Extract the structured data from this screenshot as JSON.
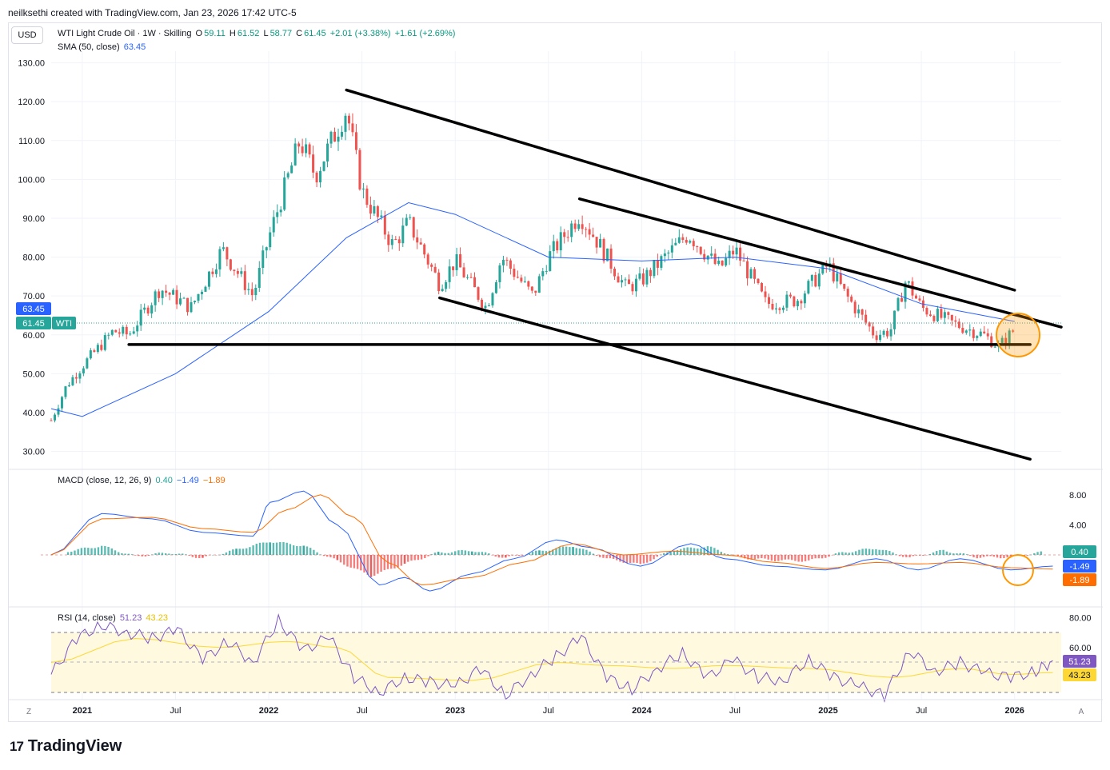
{
  "attribution": "neilksethi created with TradingView.com, Jan 23, 2026 17:42 UTC-5",
  "currency": "USD",
  "header": {
    "symbol": "WTI Light Crude Oil · 1W · Skilling",
    "o_label": "O",
    "o": "59.11",
    "h_label": "H",
    "h": "61.52",
    "l_label": "L",
    "l": "58.77",
    "c_label": "C",
    "c": "61.45",
    "change": "+2.01 (+3.38%)",
    "change2": "+1.61 (+2.69%)",
    "sma_label": "SMA (50, close)",
    "sma_value": "63.45"
  },
  "macd_header": {
    "label": "MACD (close, 12, 26, 9)",
    "hist": "0.40",
    "macd": "−1.49",
    "signal": "−1.89"
  },
  "rsi_header": {
    "label": "RSI (14, close)",
    "rsi": "51.23",
    "rsi_ma": "43.23"
  },
  "price_tags": {
    "sma": "63.45",
    "last": "61.45",
    "ticker": "WTI"
  },
  "macd_tags": {
    "hist": "0.40",
    "macd": "-1.49",
    "signal": "-1.89"
  },
  "rsi_tags": {
    "rsi": "51.23",
    "ma": "43.23"
  },
  "scale_left": "Z",
  "scale_right": "A",
  "footer": {
    "brand": "TradingView",
    "logo": "17"
  },
  "colors": {
    "up": "#26a69a",
    "down": "#ef5350",
    "sma": "#2962ff",
    "macd": "#2962ff",
    "signal": "#ff6d00",
    "rsi": "#7e57c2",
    "rsi_ma": "#fdd835",
    "highlight": "#ff9800"
  },
  "chart_data": [
    {
      "type": "candlestick",
      "title": "WTI Light Crude Oil · 1W · Skilling",
      "y_ticks": [
        130,
        120,
        110,
        100,
        90,
        80,
        70,
        60,
        50,
        40,
        30
      ],
      "ylim": [
        26,
        133
      ],
      "x_ticks": [
        "2021",
        "Jul",
        "2022",
        "Jul",
        "2023",
        "Jul",
        "2024",
        "Jul",
        "2025",
        "Jul",
        "2026"
      ],
      "x_tick_dates": [
        "2021-01",
        "2021-07",
        "2022-01",
        "2022-07",
        "2023-01",
        "2023-07",
        "2024-01",
        "2024-07",
        "2025-01",
        "2025-07",
        "2026-01"
      ],
      "xlim": [
        "2020-11",
        "2026-04"
      ],
      "close_path": [
        [
          "2020-11",
          38
        ],
        [
          "2020-12",
          47
        ],
        [
          "2021-01",
          52
        ],
        [
          "2021-03",
          61
        ],
        [
          "2021-04",
          60
        ],
        [
          "2021-06",
          72
        ],
        [
          "2021-08",
          67
        ],
        [
          "2021-10",
          82
        ],
        [
          "2021-12",
          70
        ],
        [
          "2022-01",
          85
        ],
        [
          "2022-03",
          110
        ],
        [
          "2022-04",
          101
        ],
        [
          "2022-06",
          118
        ],
        [
          "2022-07",
          97
        ],
        [
          "2022-09",
          83
        ],
        [
          "2022-10",
          89
        ],
        [
          "2022-12",
          73
        ],
        [
          "2023-01",
          79
        ],
        [
          "2023-03",
          67
        ],
        [
          "2023-04",
          80
        ],
        [
          "2023-06",
          70
        ],
        [
          "2023-07",
          80
        ],
        [
          "2023-09",
          91
        ],
        [
          "2023-10",
          85
        ],
        [
          "2023-12",
          72
        ],
        [
          "2024-01",
          74
        ],
        [
          "2024-04",
          86
        ],
        [
          "2024-06",
          77
        ],
        [
          "2024-07",
          82
        ],
        [
          "2024-09",
          68
        ],
        [
          "2024-11",
          69
        ],
        [
          "2025-01",
          78
        ],
        [
          "2025-02",
          71
        ],
        [
          "2025-04",
          60
        ],
        [
          "2025-05",
          61
        ],
        [
          "2025-06",
          74
        ],
        [
          "2025-07",
          67
        ],
        [
          "2025-09",
          63
        ],
        [
          "2025-11",
          60
        ],
        [
          "2025-12",
          57
        ],
        [
          "2026-01",
          61.45
        ]
      ],
      "sma50": {
        "name": "SMA (50, close)",
        "path": [
          [
            "2020-11",
            41
          ],
          [
            "2021-01",
            39
          ],
          [
            "2021-07",
            50
          ],
          [
            "2022-01",
            66
          ],
          [
            "2022-06",
            85
          ],
          [
            "2022-10",
            94
          ],
          [
            "2023-01",
            91
          ],
          [
            "2023-07",
            80
          ],
          [
            "2024-01",
            79
          ],
          [
            "2024-07",
            80
          ],
          [
            "2025-01",
            77
          ],
          [
            "2025-07",
            68
          ],
          [
            "2026-01",
            63.45
          ]
        ]
      },
      "trendlines": [
        {
          "from": [
            "2022-06",
            123
          ],
          "to": [
            "2026-01",
            71.5
          ]
        },
        {
          "from": [
            "2023-09",
            95
          ],
          "to": [
            "2026-04",
            62
          ]
        },
        {
          "from": [
            "2022-12",
            69.5
          ],
          "to": [
            "2026-02",
            28
          ]
        },
        {
          "from": [
            "2021-04",
            57.5
          ],
          "to": [
            "2026-02",
            57.5
          ]
        }
      ],
      "last": 61.45
    },
    {
      "type": "line",
      "title": "MACD (close, 12, 26, 9)",
      "y_ticks": [
        8,
        4
      ],
      "series": [
        {
          "name": "MACD",
          "values": [
            [
              0,
              0
            ],
            [
              6,
              5.5
            ],
            [
              12,
              4.8
            ],
            [
              18,
              3
            ],
            [
              24,
              2.5
            ],
            [
              26,
              7
            ],
            [
              30,
              8.5
            ],
            [
              34,
              4
            ],
            [
              39,
              -4
            ],
            [
              42,
              -3
            ],
            [
              45,
              -4.8
            ],
            [
              50,
              -2.5
            ],
            [
              55,
              -0.5
            ],
            [
              60,
              2
            ],
            [
              64,
              1
            ],
            [
              70,
              -1.5
            ],
            [
              76,
              1.5
            ],
            [
              80,
              -0.5
            ],
            [
              86,
              -1.5
            ],
            [
              92,
              -2
            ],
            [
              98,
              -0.5
            ],
            [
              103,
              -2
            ],
            [
              108,
              -0.5
            ],
            [
              114,
              -2
            ],
            [
              119,
              -1.49
            ]
          ]
        },
        {
          "name": "Signal",
          "values": [
            [
              0,
              0
            ],
            [
              6,
              4.8
            ],
            [
              12,
              5
            ],
            [
              18,
              3.5
            ],
            [
              24,
              3
            ],
            [
              28,
              6
            ],
            [
              32,
              8
            ],
            [
              36,
              5
            ],
            [
              40,
              -1
            ],
            [
              44,
              -4
            ],
            [
              50,
              -3
            ],
            [
              56,
              -1
            ],
            [
              62,
              1.5
            ],
            [
              68,
              0
            ],
            [
              74,
              0.5
            ],
            [
              80,
              0
            ],
            [
              86,
              -1
            ],
            [
              92,
              -1.8
            ],
            [
              98,
              -1
            ],
            [
              103,
              -1.2
            ],
            [
              108,
              -1
            ],
            [
              114,
              -1.7
            ],
            [
              119,
              -1.89
            ]
          ]
        },
        {
          "name": "Histogram",
          "values": [
            [
              2,
              0.5
            ],
            [
              6,
              1.2
            ],
            [
              10,
              -0.2
            ],
            [
              14,
              0.3
            ],
            [
              18,
              -0.4
            ],
            [
              22,
              0.7
            ],
            [
              26,
              1.8
            ],
            [
              30,
              1.2
            ],
            [
              34,
              -0.8
            ],
            [
              38,
              -2.8
            ],
            [
              42,
              -1.2
            ],
            [
              46,
              0.3
            ],
            [
              50,
              0.6
            ],
            [
              54,
              -0.4
            ],
            [
              58,
              0.5
            ],
            [
              62,
              1.2
            ],
            [
              66,
              -0.5
            ],
            [
              70,
              -1.3
            ],
            [
              74,
              0.7
            ],
            [
              78,
              1.1
            ],
            [
              82,
              -0.4
            ],
            [
              86,
              -0.7
            ],
            [
              90,
              -0.8
            ],
            [
              94,
              0.3
            ],
            [
              98,
              0.9
            ],
            [
              102,
              -0.4
            ],
            [
              106,
              0.6
            ],
            [
              110,
              -0.3
            ],
            [
              114,
              -0.3
            ],
            [
              118,
              0.4
            ]
          ]
        }
      ],
      "values": {
        "hist": 0.4,
        "macd": -1.49,
        "signal": -1.89
      }
    },
    {
      "type": "line",
      "title": "RSI (14, close)",
      "y_ticks": [
        80,
        60
      ],
      "bands": [
        70,
        50,
        30
      ],
      "series": [
        {
          "name": "RSI",
          "values": [
            [
              0,
              42
            ],
            [
              3,
              66
            ],
            [
              6,
              75
            ],
            [
              9,
              70
            ],
            [
              12,
              66
            ],
            [
              15,
              72
            ],
            [
              18,
              52
            ],
            [
              21,
              64
            ],
            [
              24,
              50
            ],
            [
              27,
              78
            ],
            [
              30,
              58
            ],
            [
              33,
              67
            ],
            [
              36,
              40
            ],
            [
              39,
              30
            ],
            [
              42,
              40
            ],
            [
              45,
              37
            ],
            [
              48,
              34
            ],
            [
              51,
              46
            ],
            [
              54,
              28
            ],
            [
              57,
              42
            ],
            [
              60,
              54
            ],
            [
              63,
              67
            ],
            [
              66,
              40
            ],
            [
              69,
              32
            ],
            [
              72,
              46
            ],
            [
              75,
              56
            ],
            [
              78,
              40
            ],
            [
              81,
              52
            ],
            [
              84,
              40
            ],
            [
              87,
              38
            ],
            [
              90,
              52
            ],
            [
              93,
              40
            ],
            [
              96,
              34
            ],
            [
              99,
              28
            ],
            [
              102,
              58
            ],
            [
              105,
              44
            ],
            [
              108,
              50
            ],
            [
              111,
              43
            ],
            [
              114,
              40
            ],
            [
              117,
              44
            ],
            [
              119,
              51.23
            ]
          ]
        },
        {
          "name": "RSI MA",
          "values": [
            [
              0,
              50
            ],
            [
              10,
              66
            ],
            [
              20,
              60
            ],
            [
              28,
              64
            ],
            [
              34,
              60
            ],
            [
              40,
              40
            ],
            [
              50,
              38
            ],
            [
              60,
              50
            ],
            [
              66,
              48
            ],
            [
              74,
              46
            ],
            [
              80,
              48
            ],
            [
              90,
              46
            ],
            [
              100,
              40
            ],
            [
              108,
              46
            ],
            [
              114,
              42
            ],
            [
              119,
              43.23
            ]
          ]
        }
      ],
      "values": {
        "rsi": 51.23,
        "ma": 43.23
      }
    }
  ]
}
